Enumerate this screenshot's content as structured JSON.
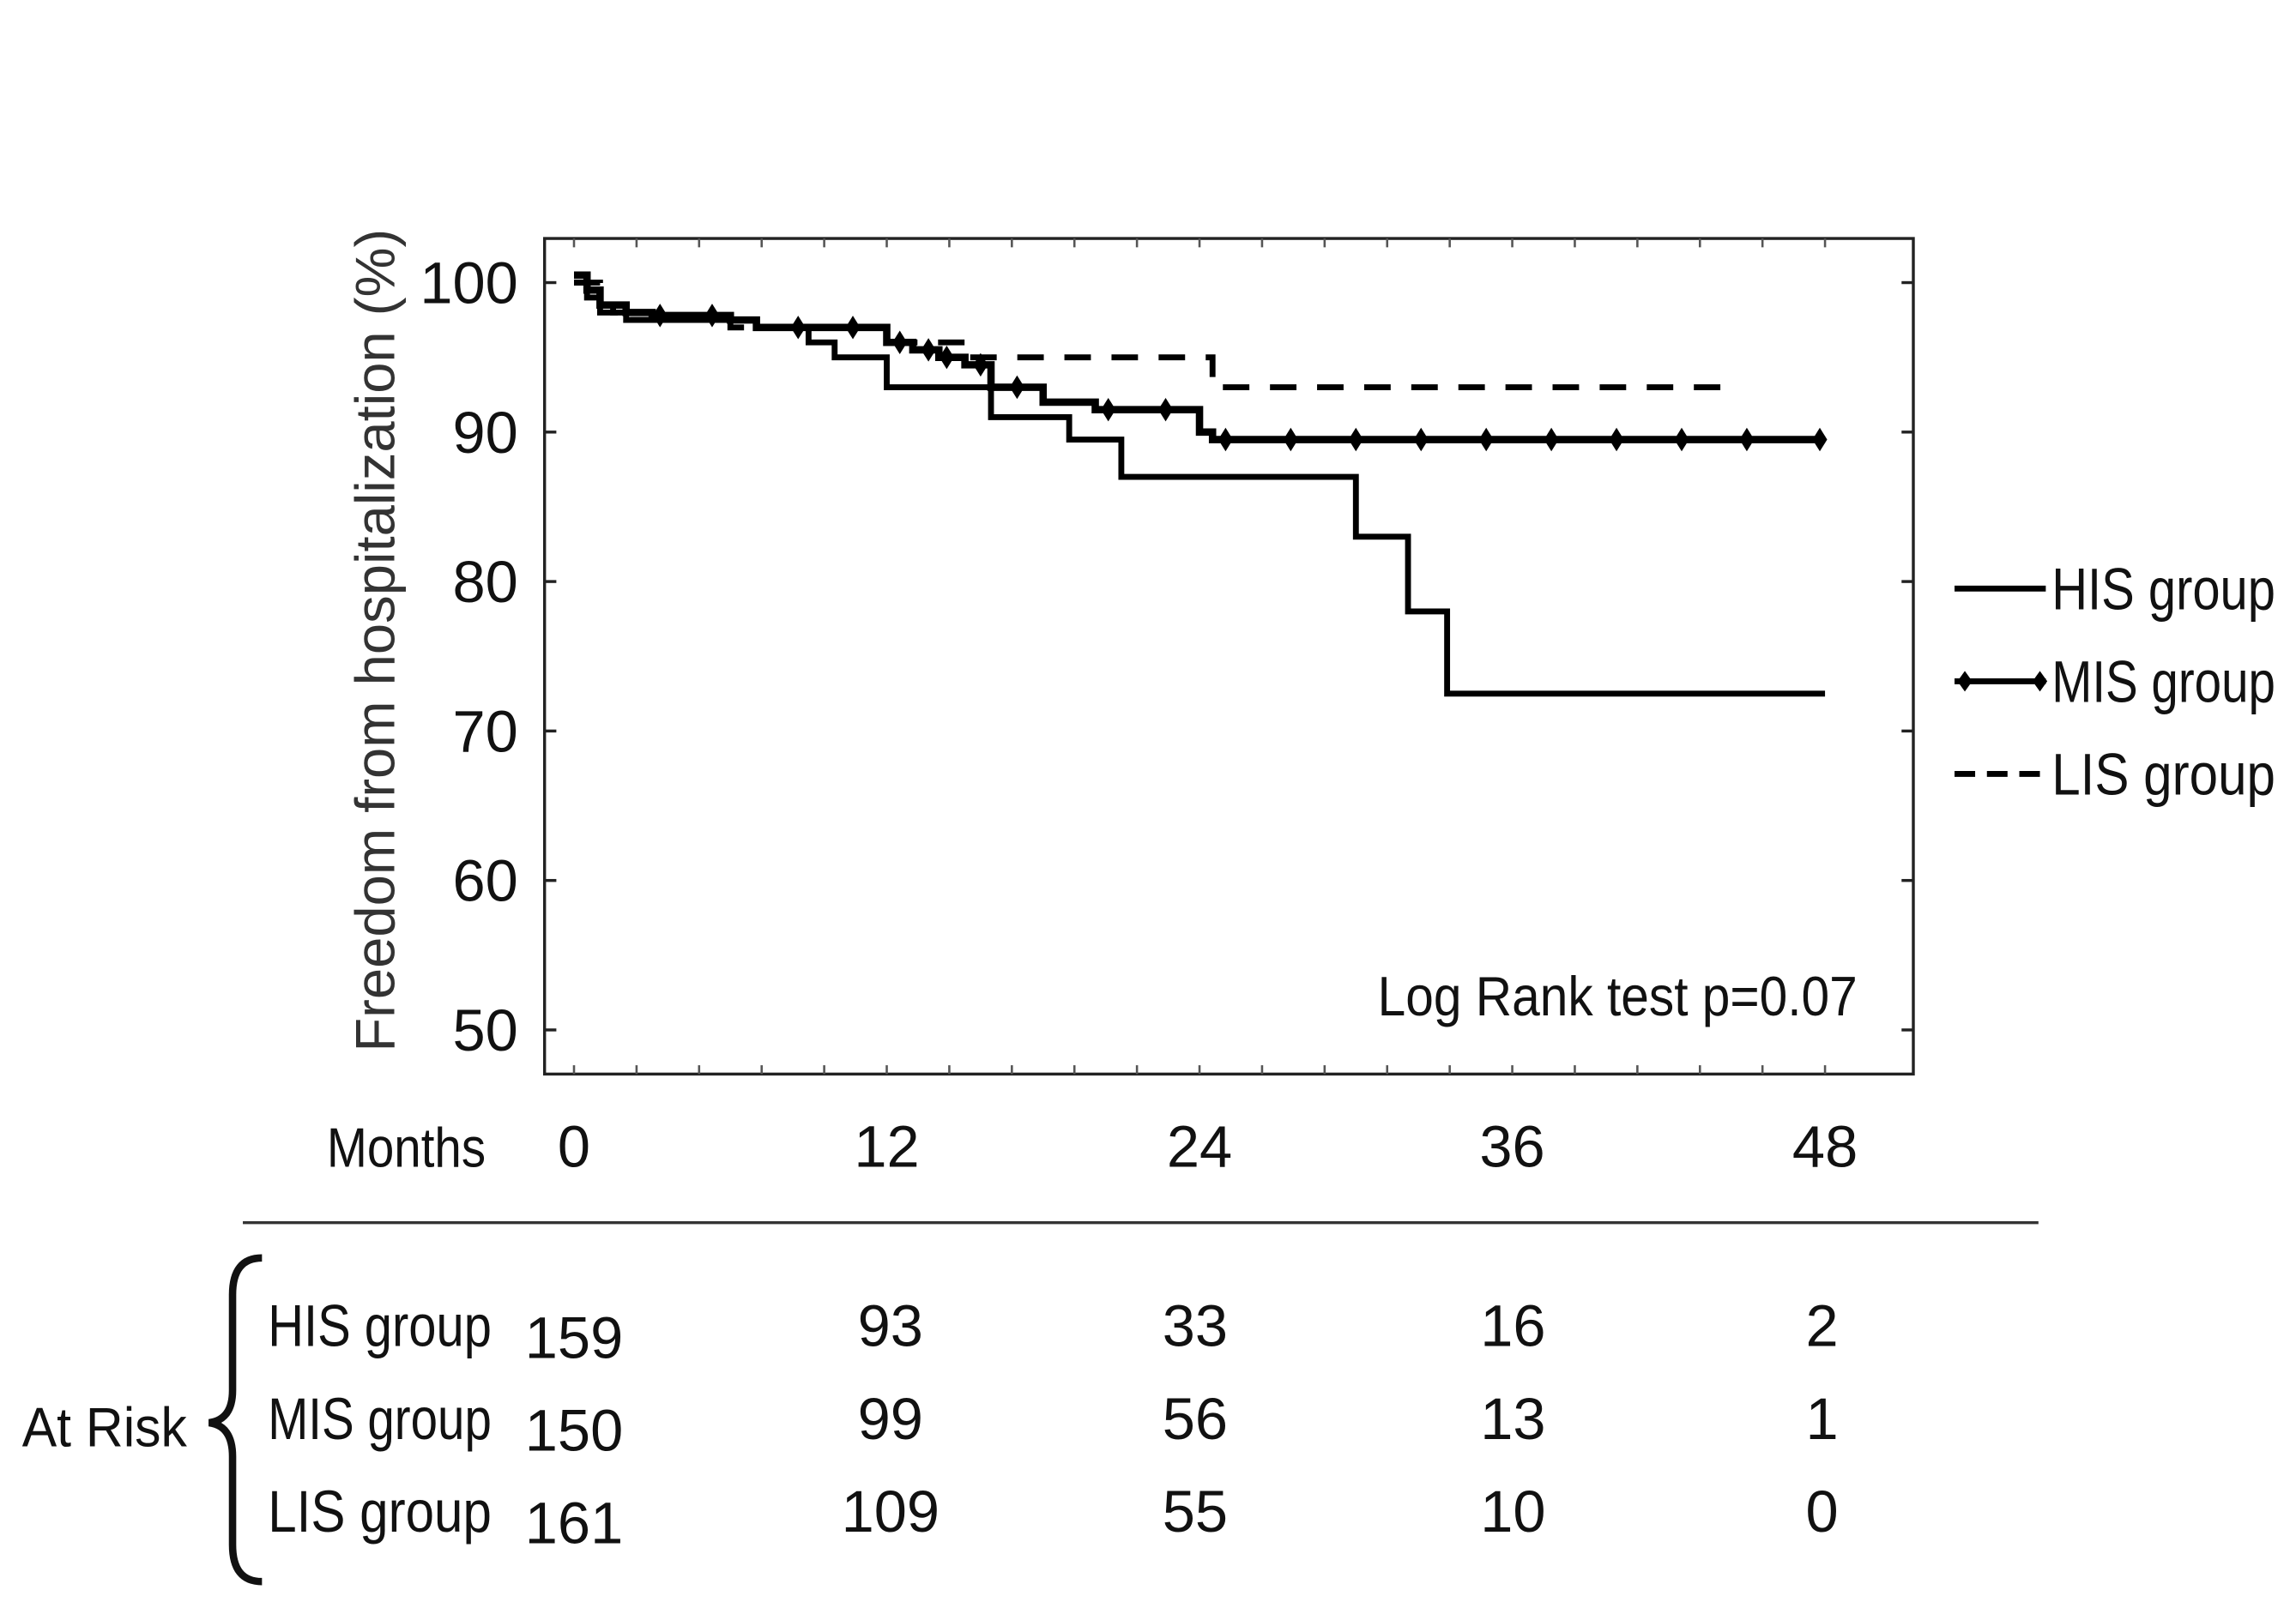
{
  "chart_data": {
    "type": "line",
    "step": true,
    "ylabel": "Freedom from hospitalization  (%)",
    "xlabel": "Months",
    "xlim": [
      0,
      48
    ],
    "ylim": [
      50,
      100
    ],
    "xticks": [
      0,
      12,
      24,
      36,
      48
    ],
    "yticks": [
      100,
      90,
      80,
      70,
      60,
      50
    ],
    "grid": false,
    "legend_placement": "right-outside",
    "annotation": "Log Rank test p=0.07",
    "series": [
      {
        "name": "HIS group",
        "style": "solid",
        "points": [
          [
            0,
            100
          ],
          [
            0.5,
            99
          ],
          [
            1,
            98.5
          ],
          [
            1.5,
            98
          ],
          [
            2,
            97.5
          ],
          [
            7,
            97
          ],
          [
            9,
            96
          ],
          [
            10,
            95
          ],
          [
            12,
            93
          ],
          [
            16,
            91
          ],
          [
            19,
            89.5
          ],
          [
            21,
            87
          ],
          [
            30,
            83
          ],
          [
            32,
            78
          ],
          [
            33.5,
            72.5
          ],
          [
            48,
            72.5
          ]
        ]
      },
      {
        "name": "MIS group",
        "style": "solid-thick-censored",
        "points": [
          [
            0,
            100.5
          ],
          [
            0.5,
            99.5
          ],
          [
            1,
            98.5
          ],
          [
            2,
            98
          ],
          [
            3,
            97.8
          ],
          [
            6,
            97.5
          ],
          [
            7,
            97
          ],
          [
            12,
            96
          ],
          [
            13,
            95.5
          ],
          [
            14,
            95
          ],
          [
            15,
            94.5
          ],
          [
            16,
            93
          ],
          [
            18,
            92
          ],
          [
            20,
            91.5
          ],
          [
            24,
            90
          ],
          [
            24.5,
            89.5
          ],
          [
            48,
            89.5
          ]
        ],
        "censor_months": [
          3.3,
          5.3,
          8.6,
          10.7,
          12.5,
          13.6,
          14.3,
          15.6,
          17,
          20.5,
          22.7,
          25,
          27.5,
          30,
          32.5,
          35,
          37.5,
          40,
          42.5,
          45,
          47.8
        ]
      },
      {
        "name": "LIS group",
        "style": "dashed",
        "points": [
          [
            0,
            100
          ],
          [
            1,
            98
          ],
          [
            2,
            97.5
          ],
          [
            6,
            97
          ],
          [
            10,
            97
          ],
          [
            12,
            96
          ],
          [
            15,
            95
          ],
          [
            24.4,
            95
          ],
          [
            24.5,
            93
          ],
          [
            44,
            93
          ]
        ]
      }
    ],
    "at_risk": {
      "label": "At Risk",
      "rows": [
        {
          "group": "HIS group",
          "values": [
            159,
            93,
            33,
            16,
            2
          ]
        },
        {
          "group": "MIS group",
          "values": [
            150,
            99,
            56,
            13,
            1
          ]
        },
        {
          "group": "LIS group",
          "values": [
            161,
            109,
            55,
            10,
            0
          ]
        }
      ]
    }
  }
}
